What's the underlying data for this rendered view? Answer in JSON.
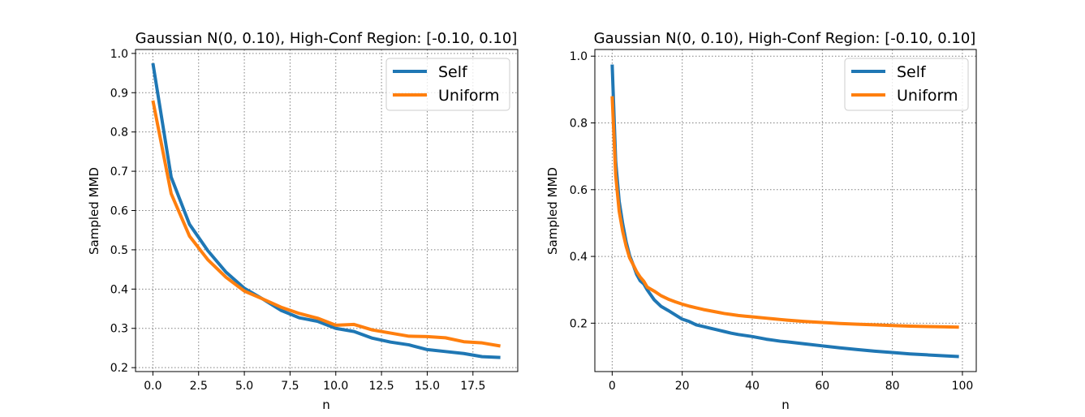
{
  "chart_data": [
    {
      "type": "line",
      "title": "Gaussian N(0, 0.10), High-Conf Region: [-0.10, 0.10]",
      "xlabel": "n",
      "ylabel": "Sampled MMD",
      "xlim": [
        -0.95,
        19.95
      ],
      "ylim": [
        0.19,
        1.01
      ],
      "xticks": [
        0,
        2.5,
        5,
        7.5,
        10,
        12.5,
        15,
        17.5
      ],
      "xtick_labels": [
        "0.0",
        "2.5",
        "5.0",
        "7.5",
        "10.0",
        "12.5",
        "15.0",
        "17.5"
      ],
      "yticks": [
        0.2,
        0.3,
        0.4,
        0.5,
        0.6,
        0.7,
        0.8,
        0.9,
        1.0
      ],
      "ytick_labels": [
        "0.2",
        "0.3",
        "0.4",
        "0.5",
        "0.6",
        "0.7",
        "0.8",
        "0.9",
        "1.0"
      ],
      "grid": true,
      "legend_position": "top-right",
      "x": [
        0,
        1,
        2,
        3,
        4,
        5,
        6,
        7,
        8,
        9,
        10,
        11,
        12,
        13,
        14,
        15,
        16,
        17,
        18,
        19
      ],
      "series": [
        {
          "name": "Self",
          "color": "#1f77b4",
          "values": [
            0.975,
            0.685,
            0.565,
            0.498,
            0.443,
            0.402,
            0.375,
            0.346,
            0.327,
            0.318,
            0.3,
            0.292,
            0.275,
            0.265,
            0.258,
            0.246,
            0.241,
            0.236,
            0.228,
            0.226
          ]
        },
        {
          "name": "Uniform",
          "color": "#ff7f0e",
          "values": [
            0.88,
            0.643,
            0.535,
            0.475,
            0.43,
            0.395,
            0.375,
            0.354,
            0.338,
            0.326,
            0.308,
            0.31,
            0.296,
            0.288,
            0.28,
            0.279,
            0.276,
            0.266,
            0.263,
            0.255
          ]
        }
      ]
    },
    {
      "type": "line",
      "title": "Gaussian N(0, 0.10), High-Conf Region: [-0.10, 0.10]",
      "xlabel": "n",
      "ylabel": "Sampled MMD",
      "xlim": [
        -4.95,
        103.95
      ],
      "ylim": [
        0.055,
        1.02
      ],
      "xticks": [
        0,
        20,
        40,
        60,
        80,
        100
      ],
      "xtick_labels": [
        "0",
        "20",
        "40",
        "60",
        "80",
        "100"
      ],
      "yticks": [
        0.2,
        0.4,
        0.6,
        0.8,
        1.0
      ],
      "ytick_labels": [
        "0.2",
        "0.4",
        "0.6",
        "0.8",
        "1.0"
      ],
      "grid": true,
      "legend_position": "top-right",
      "x": [
        0,
        1,
        2,
        3,
        4,
        5,
        6,
        7,
        8,
        9,
        10,
        12,
        14,
        16,
        18,
        20,
        22,
        24,
        26,
        28,
        30,
        32,
        34,
        36,
        38,
        40,
        42,
        44,
        46,
        48,
        50,
        55,
        60,
        65,
        70,
        75,
        80,
        85,
        90,
        95,
        99
      ],
      "series": [
        {
          "name": "Self",
          "color": "#1f77b4",
          "values": [
            0.975,
            0.685,
            0.565,
            0.498,
            0.443,
            0.402,
            0.375,
            0.346,
            0.327,
            0.318,
            0.3,
            0.27,
            0.25,
            0.238,
            0.225,
            0.212,
            0.205,
            0.195,
            0.19,
            0.185,
            0.18,
            0.175,
            0.17,
            0.166,
            0.163,
            0.16,
            0.156,
            0.152,
            0.149,
            0.146,
            0.144,
            0.138,
            0.132,
            0.126,
            0.121,
            0.116,
            0.112,
            0.108,
            0.105,
            0.102,
            0.1
          ]
        },
        {
          "name": "Uniform",
          "color": "#ff7f0e",
          "values": [
            0.88,
            0.643,
            0.535,
            0.475,
            0.43,
            0.395,
            0.375,
            0.354,
            0.338,
            0.326,
            0.308,
            0.296,
            0.282,
            0.272,
            0.264,
            0.257,
            0.251,
            0.246,
            0.241,
            0.237,
            0.233,
            0.229,
            0.226,
            0.223,
            0.221,
            0.219,
            0.217,
            0.215,
            0.213,
            0.211,
            0.209,
            0.205,
            0.202,
            0.199,
            0.197,
            0.195,
            0.193,
            0.191,
            0.19,
            0.189,
            0.188
          ]
        }
      ]
    }
  ]
}
